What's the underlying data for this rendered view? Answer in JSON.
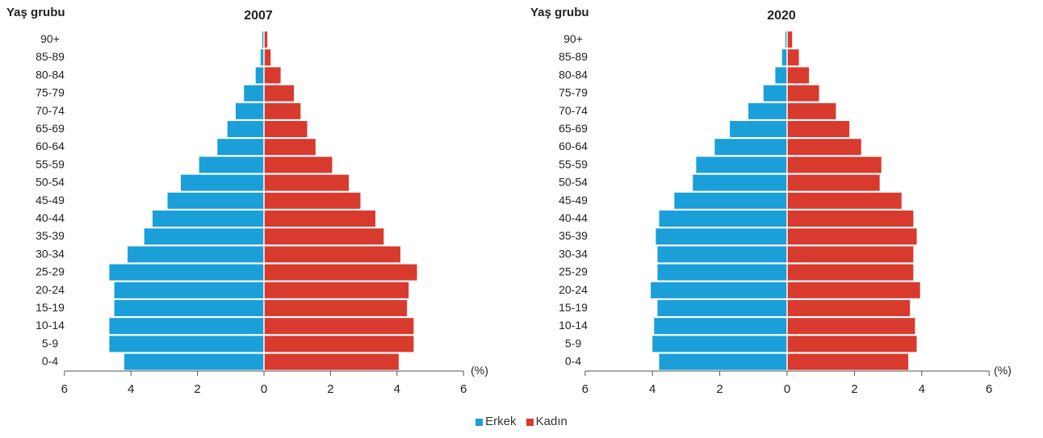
{
  "colors": {
    "male": "#1a9fd9",
    "female": "#d93a2e",
    "axis": "#555555",
    "text": "#222222"
  },
  "legend": {
    "male_label": "Erkek",
    "female_label": "Kadın"
  },
  "chart_data": [
    {
      "type": "bar",
      "title": "2007",
      "ylabel": "Yaş grubu",
      "xlabel": "(%)",
      "xlim": [
        -6,
        6
      ],
      "xticks": [
        6,
        4,
        2,
        0,
        2,
        4,
        6
      ],
      "categories": [
        "90+",
        "85-89",
        "80-84",
        "75-79",
        "70-74",
        "65-69",
        "60-64",
        "55-59",
        "50-54",
        "45-49",
        "40-44",
        "35-39",
        "30-34",
        "25-29",
        "20-24",
        "15-19",
        "10-14",
        "5-9",
        "0-4"
      ],
      "series": [
        {
          "name": "Erkek",
          "values": [
            0.05,
            0.1,
            0.25,
            0.6,
            0.85,
            1.1,
            1.4,
            1.95,
            2.5,
            2.9,
            3.35,
            3.6,
            4.1,
            4.65,
            4.5,
            4.5,
            4.65,
            4.65,
            4.2
          ]
        },
        {
          "name": "Kadın",
          "values": [
            0.1,
            0.2,
            0.5,
            0.9,
            1.1,
            1.3,
            1.55,
            2.05,
            2.55,
            2.9,
            3.35,
            3.6,
            4.1,
            4.6,
            4.35,
            4.3,
            4.5,
            4.5,
            4.05
          ]
        }
      ]
    },
    {
      "type": "bar",
      "title": "2020",
      "ylabel": "Yaş grubu",
      "xlabel": "(%)",
      "xlim": [
        -6,
        6
      ],
      "xticks": [
        6,
        4,
        2,
        0,
        2,
        4,
        6
      ],
      "categories": [
        "90+",
        "85-89",
        "80-84",
        "75-79",
        "70-74",
        "65-69",
        "60-64",
        "55-59",
        "50-54",
        "45-49",
        "40-44",
        "35-39",
        "30-34",
        "25-29",
        "20-24",
        "15-19",
        "10-14",
        "5-9",
        "0-4"
      ],
      "series": [
        {
          "name": "Erkek",
          "values": [
            0.05,
            0.15,
            0.35,
            0.7,
            1.15,
            1.7,
            2.15,
            2.7,
            2.8,
            3.35,
            3.8,
            3.9,
            3.85,
            3.85,
            4.05,
            3.85,
            3.95,
            4.0,
            3.8
          ]
        },
        {
          "name": "Kadın",
          "values": [
            0.15,
            0.35,
            0.65,
            0.95,
            1.45,
            1.85,
            2.2,
            2.8,
            2.75,
            3.4,
            3.75,
            3.85,
            3.75,
            3.75,
            3.95,
            3.65,
            3.8,
            3.85,
            3.6
          ]
        }
      ]
    }
  ]
}
